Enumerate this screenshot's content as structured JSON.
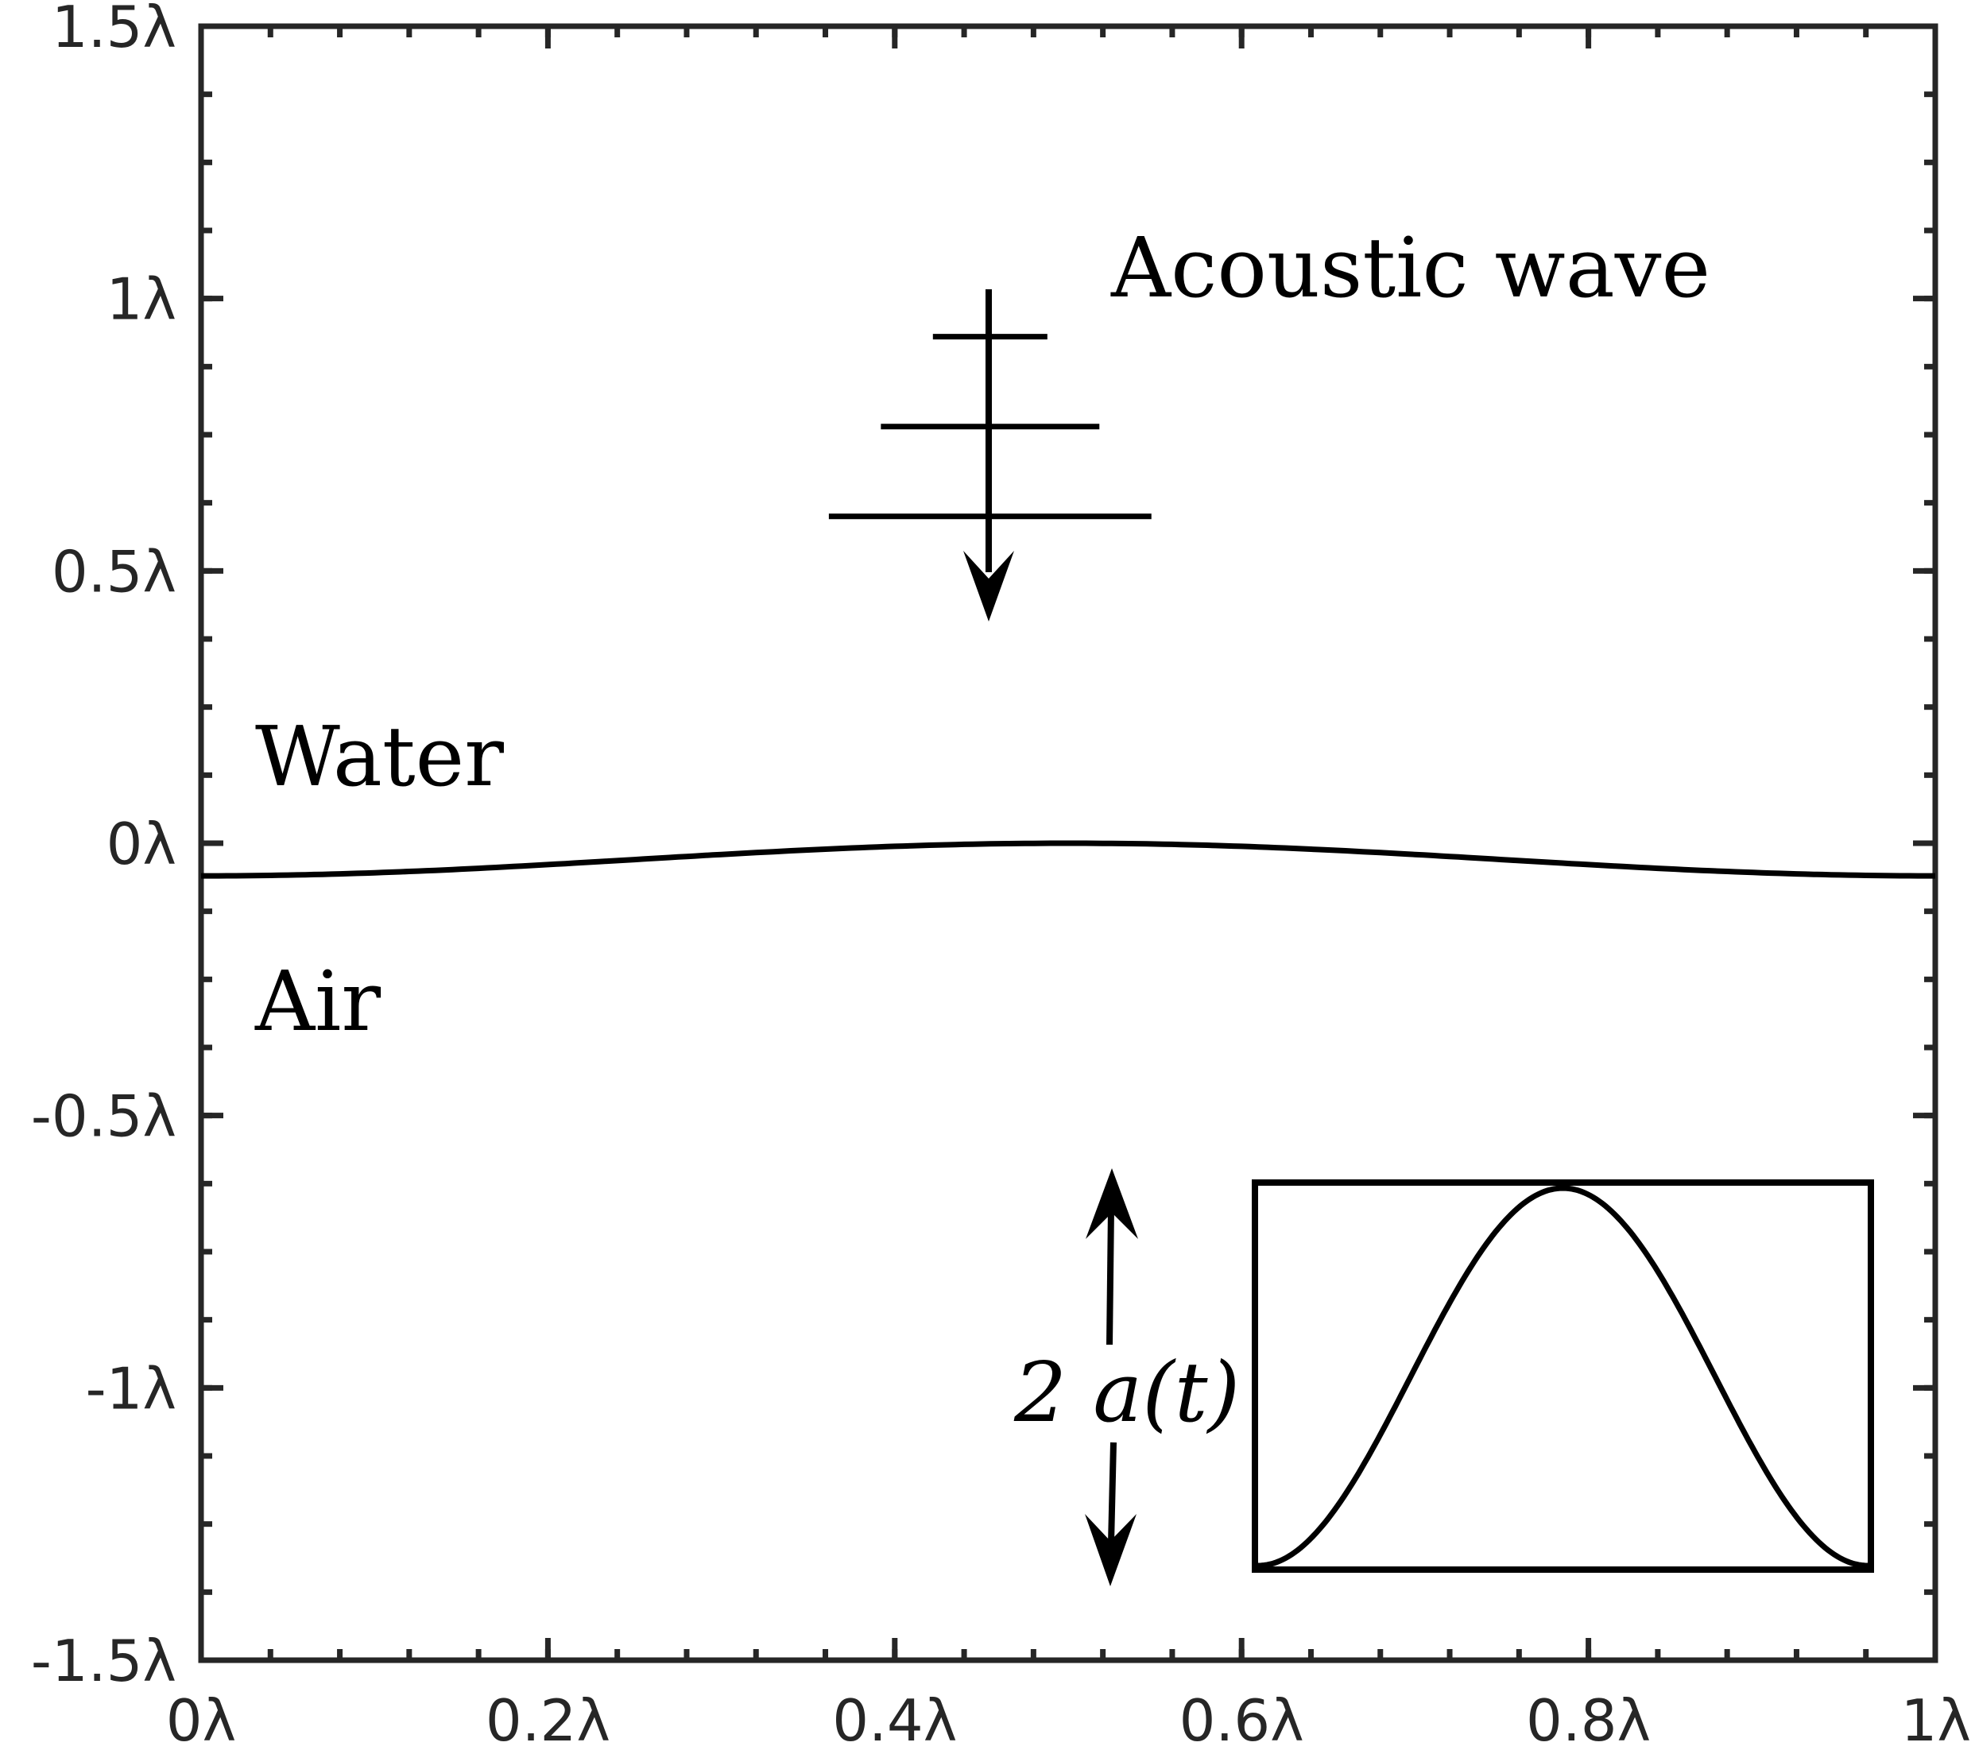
{
  "chart_data": {
    "type": "line",
    "x_ticks": [
      "0λ",
      "0.2λ",
      "0.4λ",
      "0.6λ",
      "0.8λ",
      "1λ"
    ],
    "y_ticks": [
      "1.5λ",
      "1λ",
      "0.5λ",
      "0λ",
      "-0.5λ",
      "-1λ",
      "-1.5λ"
    ],
    "x_tick_values": [
      0,
      0.2,
      0.4,
      0.6,
      0.8,
      1
    ],
    "y_tick_values": [
      1.5,
      1,
      0.5,
      0,
      -0.5,
      -1,
      -1.5
    ],
    "xlim": [
      0,
      1
    ],
    "ylim": [
      -1.5,
      1.5
    ],
    "minor_tick_step": 0.04,
    "minor_tick_step_y": 0.125,
    "grid": false,
    "series": [
      {
        "x": [
          0,
          0.1,
          0.2,
          0.3,
          0.4,
          0.5,
          0.6,
          0.7,
          0.8,
          0.9,
          1
        ],
        "y": [
          -0.06,
          -0.054,
          -0.036,
          -0.021,
          -0.006,
          0,
          -0.006,
          -0.021,
          -0.036,
          -0.054,
          -0.06
        ]
      }
    ],
    "annotations": {
      "acoustic_wave": "Acoustic wave",
      "water": "Water",
      "air": "Air",
      "amplitude": "2 a(t)"
    },
    "wavefront_x": 0.455,
    "wavefront_y": [
      0.93,
      0.765,
      0.6
    ],
    "wavefront_half_widths": [
      0.033,
      0.063,
      0.093
    ]
  },
  "colors": {
    "axis": "#262626",
    "line": "#000000",
    "background": "#ffffff"
  }
}
